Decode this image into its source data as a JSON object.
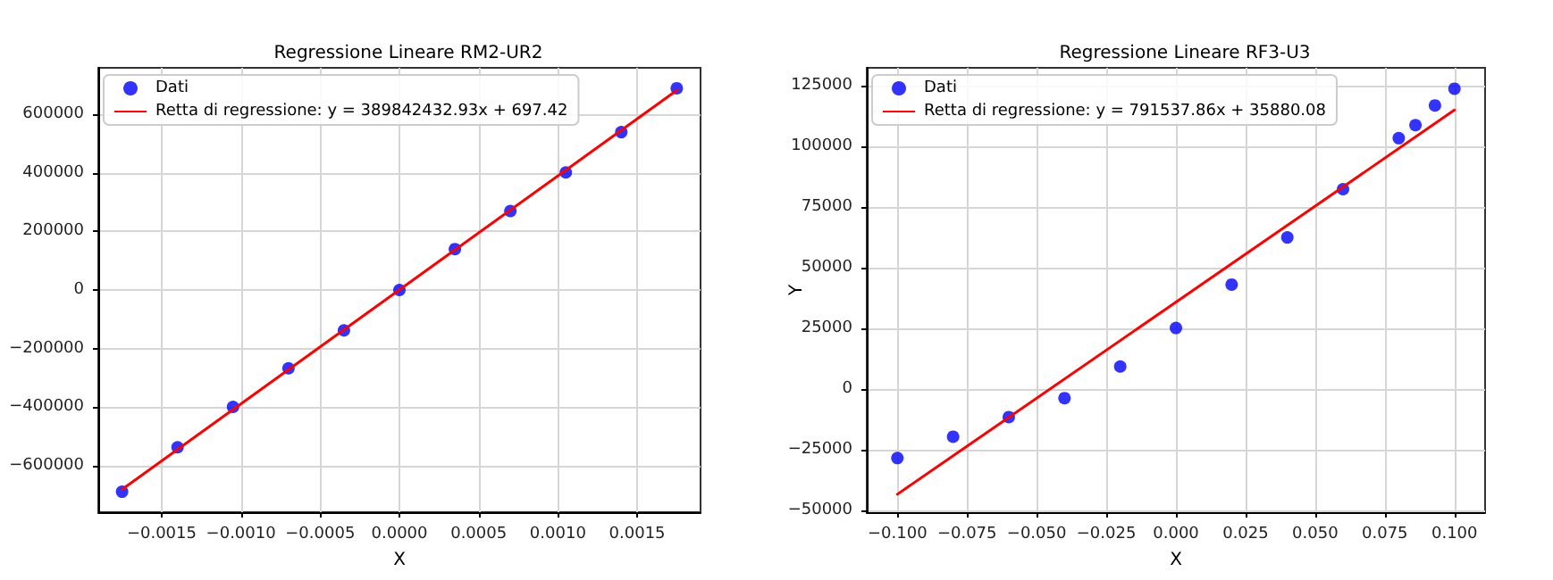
{
  "chart_data": [
    {
      "type": "scatter",
      "title": "Regressione Lineare RM2-UR2",
      "xlabel": "X",
      "grid": true,
      "legend": "top left",
      "marker": "circle",
      "xlim": [
        -0.0019,
        0.0019
      ],
      "ylim": [
        -760000,
        760000
      ],
      "xticks": [
        {
          "value": -0.0015,
          "label": "−0.0015"
        },
        {
          "value": -0.001,
          "label": "−0.0010"
        },
        {
          "value": -0.0005,
          "label": "−0.0005"
        },
        {
          "value": 0,
          "label": "0.0000"
        },
        {
          "value": 0.0005,
          "label": "0.0005"
        },
        {
          "value": 0.001,
          "label": "0.0010"
        },
        {
          "value": 0.0015,
          "label": "0.0015"
        }
      ],
      "yticks": [
        {
          "value": -600000,
          "label": "−600000"
        },
        {
          "value": -400000,
          "label": "−400000"
        },
        {
          "value": -200000,
          "label": "−200000"
        },
        0,
        200000,
        400000,
        600000
      ],
      "series": [
        {
          "name": "Dati",
          "type": "scatter",
          "color": "#0000ff",
          "x": [
            -0.00175,
            -0.0014,
            -0.00105,
            -0.0007,
            -0.00035,
            0,
            0.00035,
            0.0007,
            0.00105,
            0.0014,
            0.00175
          ],
          "values": [
            -690000,
            -538000,
            -400000,
            -268000,
            -138000,
            0,
            140000,
            270000,
            402000,
            540000,
            690000
          ]
        },
        {
          "name": "Retta di regressione: y = 389842432.93x + 697.42",
          "type": "line",
          "marker": "none",
          "color": "#ff0000",
          "x": [
            -0.00175,
            0.00175
          ],
          "values": [
            -682000,
            683000
          ]
        }
      ]
    },
    {
      "type": "scatter",
      "title": "Regressione Lineare RF3-U3",
      "xlabel": "X",
      "ylabel": "Y",
      "grid": true,
      "legend": "top left",
      "marker": "circle",
      "xlim": [
        -0.111,
        0.111
      ],
      "ylim": [
        -50700,
        132400
      ],
      "xticks": [
        {
          "value": -0.1,
          "label": "−0.100"
        },
        {
          "value": -0.075,
          "label": "−0.075"
        },
        {
          "value": -0.05,
          "label": "−0.050"
        },
        {
          "value": -0.025,
          "label": "−0.025"
        },
        {
          "value": 0,
          "label": "0.000"
        },
        {
          "value": 0.025,
          "label": "0.025"
        },
        {
          "value": 0.05,
          "label": "0.050"
        },
        {
          "value": 0.075,
          "label": "0.075"
        },
        {
          "value": 0.1,
          "label": "0.100"
        }
      ],
      "yticks": [
        {
          "value": -50000,
          "label": "−50000"
        },
        {
          "value": -25000,
          "label": "−25000"
        },
        0,
        25000,
        50000,
        75000,
        100000,
        125000
      ],
      "series": [
        {
          "name": "Dati",
          "type": "scatter",
          "color": "#0000ff",
          "x": [
            -0.1,
            -0.08,
            -0.06,
            -0.04,
            -0.02,
            0,
            0.02,
            0.04,
            0.06,
            0.08,
            0.086,
            0.093,
            0.1
          ],
          "values": [
            -28400,
            -19600,
            -11500,
            -3700,
            9300,
            25200,
            43100,
            62500,
            82400,
            103400,
            108800,
            116900,
            123800
          ]
        },
        {
          "name": "Retta di regressione: y = 791537.86x + 35880.08",
          "type": "line",
          "marker": "none",
          "color": "#ff0000",
          "x": [
            -0.1,
            0.1
          ],
          "values": [
            -43300,
            115000
          ]
        }
      ]
    }
  ]
}
